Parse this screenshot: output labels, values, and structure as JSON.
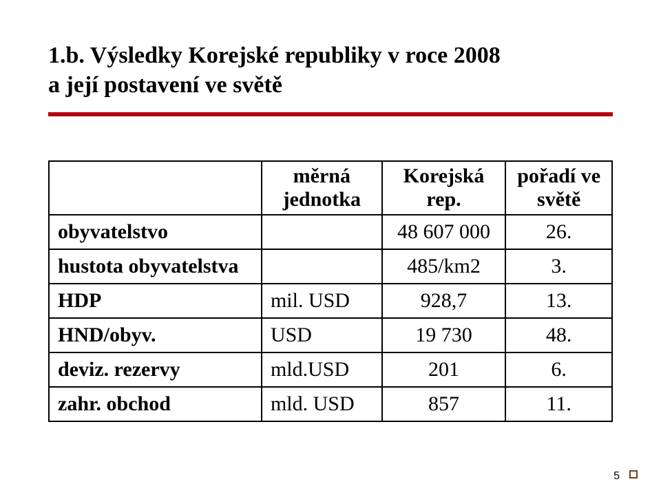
{
  "title_line1": "1.b. Výsledky Korejské republiky v roce 2008",
  "title_line2": "a její postavení ve světě",
  "underline_color": "#b50010",
  "table": {
    "headers": {
      "blank": "",
      "unit": "měrná jednotka",
      "value": "Korejská rep.",
      "rank": "pořadí ve světě"
    },
    "rows": [
      {
        "label": "obyvatelstvo",
        "unit": "",
        "value": "48 607 000",
        "rank": "26."
      },
      {
        "label": "hustota obyvatelstva",
        "unit": "",
        "value": "485/km2",
        "rank": "3."
      },
      {
        "label": "HDP",
        "unit": "mil. USD",
        "value": "928,7",
        "rank": "13."
      },
      {
        "label": "HND/obyv.",
        "unit": "USD",
        "value": "19 730",
        "rank": "48."
      },
      {
        "label": "deviz. rezervy",
        "unit": "mld.USD",
        "value": "201",
        "rank": "6."
      },
      {
        "label": "zahr. obchod",
        "unit": "mld. USD",
        "value": "857",
        "rank": "11."
      }
    ]
  },
  "page_number": "5"
}
